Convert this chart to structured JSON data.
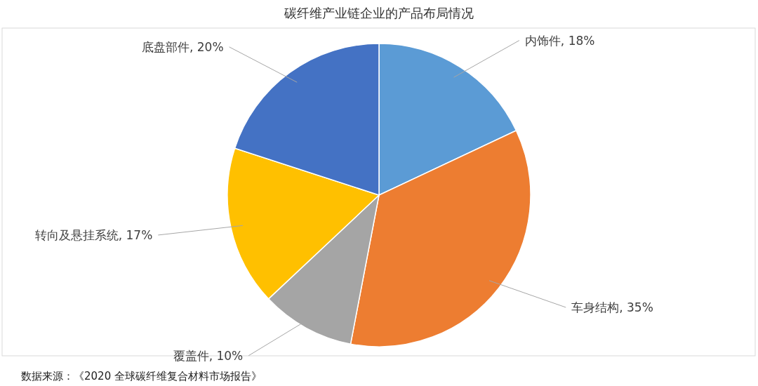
{
  "chart_data": {
    "type": "pie",
    "title": "碳纤维产业链企业的产品布局情况",
    "categories": [
      "内饰件",
      "车身结构",
      "覆盖件",
      "转向及悬挂系统",
      "底盘部件"
    ],
    "values": [
      18,
      35,
      10,
      17,
      20
    ],
    "colors": [
      "#5b9bd5",
      "#ed7d31",
      "#a5a5a5",
      "#ffc000",
      "#4472c4"
    ],
    "value_labels": [
      "18%",
      "35%",
      "10%",
      "17%",
      "20%"
    ],
    "annotations": [
      "数据来源：《2020 全球碳纤维复合材料市场报告》"
    ]
  }
}
